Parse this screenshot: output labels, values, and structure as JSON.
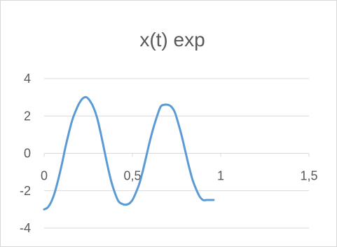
{
  "chart_data": {
    "type": "line",
    "title": "x(t) exp",
    "xlabel": "",
    "ylabel": "",
    "xlim": [
      0,
      1.5
    ],
    "ylim": [
      -4,
      4
    ],
    "x_ticks": [
      "0",
      "0,5",
      "1",
      "1,5"
    ],
    "y_ticks": [
      "4",
      "2",
      "0",
      "-2",
      "-4"
    ],
    "grid": "horizontal",
    "legend": "none",
    "line_color": "#5b9bd5",
    "grid_color": "#d9d9d9",
    "series": [
      {
        "x": [
          0.0,
          0.02,
          0.04,
          0.06,
          0.08,
          0.1,
          0.12,
          0.14,
          0.16,
          0.18,
          0.2,
          0.22,
          0.24,
          0.26,
          0.28,
          0.3,
          0.32,
          0.34,
          0.36,
          0.38,
          0.4,
          0.42,
          0.44,
          0.46,
          0.48,
          0.5,
          0.52,
          0.54,
          0.56,
          0.58,
          0.6,
          0.62,
          0.64,
          0.66,
          0.68,
          0.7,
          0.72,
          0.74,
          0.76,
          0.78,
          0.8,
          0.82,
          0.84,
          0.86,
          0.88,
          0.9,
          0.92,
          0.94,
          0.96
        ],
        "y": [
          -3.0,
          -2.9,
          -2.6,
          -2.1,
          -1.4,
          -0.6,
          0.3,
          1.1,
          1.8,
          2.3,
          2.7,
          2.95,
          3.0,
          2.8,
          2.45,
          1.9,
          1.1,
          0.2,
          -0.7,
          -1.5,
          -2.1,
          -2.55,
          -2.7,
          -2.75,
          -2.7,
          -2.5,
          -2.1,
          -1.6,
          -0.9,
          -0.1,
          0.7,
          1.4,
          2.0,
          2.5,
          2.6,
          2.6,
          2.5,
          2.2,
          1.6,
          0.9,
          0.1,
          -0.7,
          -1.4,
          -1.9,
          -2.3,
          -2.5,
          -2.5,
          -2.5,
          -2.5
        ]
      }
    ]
  }
}
